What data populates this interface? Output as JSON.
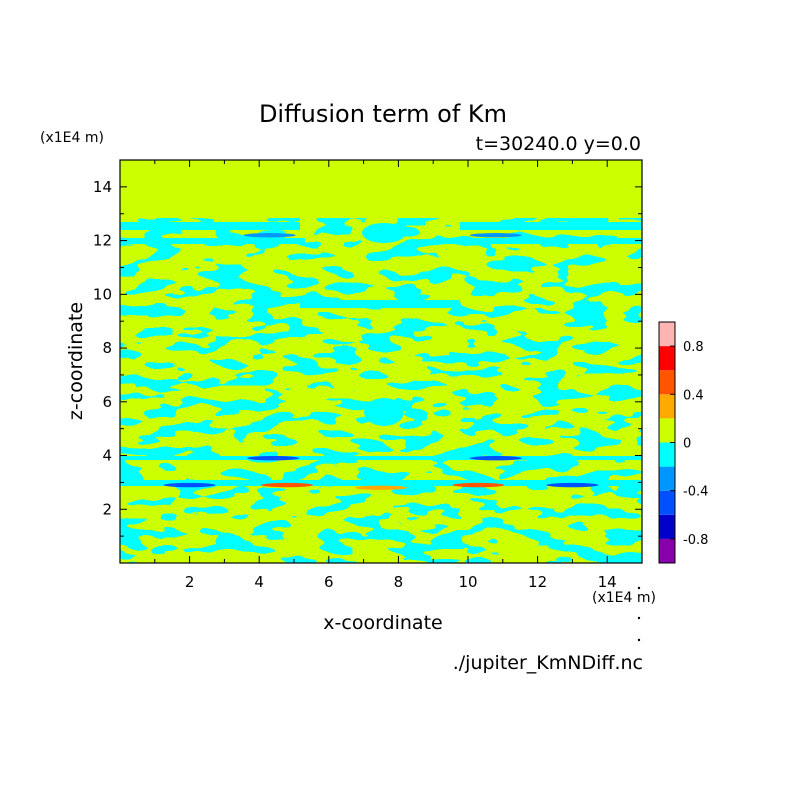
{
  "chart_data": {
    "type": "heatmap",
    "title": "Diffusion term of Km",
    "subtitle": "t=30240.0 y=0.0",
    "xlabel": "x-coordinate",
    "ylabel": "z-coordinate",
    "x_unit": "(x1E4 m)",
    "y_unit": "(x1E4 m)",
    "xlim": [
      0,
      15
    ],
    "ylim": [
      0,
      15
    ],
    "x_ticks": [
      2,
      4,
      6,
      8,
      10,
      12,
      14
    ],
    "y_ticks": [
      2,
      4,
      6,
      8,
      10,
      12,
      14
    ],
    "colorbar": {
      "levels": [
        -1.0,
        -0.8,
        -0.6,
        -0.4,
        -0.2,
        0.0,
        0.2,
        0.4,
        0.6,
        0.8,
        1.0
      ],
      "labels": [
        "-0.8",
        "-0.4",
        "0",
        "0.4",
        "0.8"
      ],
      "label_values": [
        -0.8,
        -0.4,
        0.0,
        0.4,
        0.8
      ],
      "colors": [
        "#8800aa",
        "#0000c8",
        "#0050ff",
        "#0096ff",
        "#00ffff",
        "#ccff00",
        "#ffaa00",
        "#ff5500",
        "#ff0000",
        "#ffb4b4"
      ]
    },
    "field_summary": {
      "background_value": 0.0,
      "band_z_range": [
        0,
        12.6
      ],
      "strong_features": [
        {
          "x": 4.8,
          "z": 2.9,
          "value": 0.45
        },
        {
          "x": 10.3,
          "z": 2.9,
          "value": 0.45
        },
        {
          "x": 2.0,
          "z": 2.9,
          "value": -0.5
        },
        {
          "x": 13.0,
          "z": 2.9,
          "value": -0.5
        },
        {
          "x": 4.4,
          "z": 3.9,
          "value": -0.45
        },
        {
          "x": 10.8,
          "z": 3.9,
          "value": -0.45
        },
        {
          "x": 7.5,
          "z": 2.8,
          "value": 0.3
        },
        {
          "x": 4.3,
          "z": 12.2,
          "value": -0.4
        },
        {
          "x": 10.8,
          "z": 12.2,
          "value": -0.4
        }
      ]
    }
  },
  "footer": {
    "source": "./jupiter_KmNDiff.nc"
  }
}
